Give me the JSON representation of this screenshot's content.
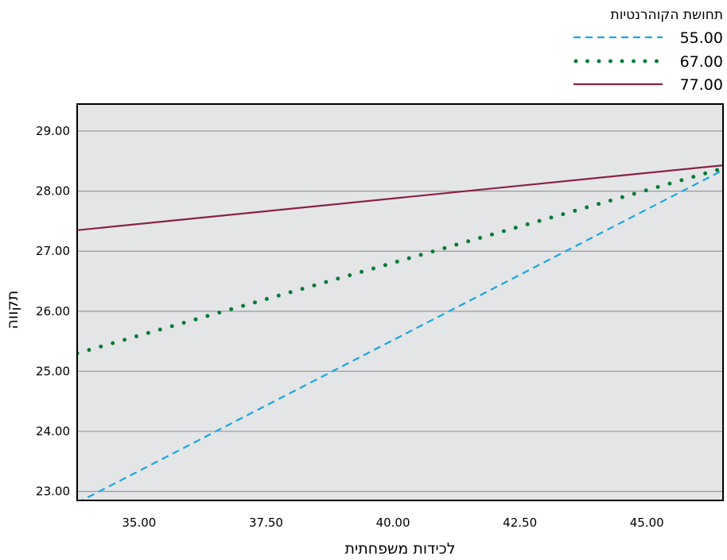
{
  "chart_data": {
    "type": "line",
    "title": "",
    "xlabel": "לכידות משפחתית",
    "ylabel": "תקווה",
    "xlim": [
      33.78,
      46.5
    ],
    "ylim": [
      22.85,
      29.45
    ],
    "x_ticks": [
      "35.00",
      "37.50",
      "40.00",
      "42.50",
      "45.00"
    ],
    "y_ticks": [
      "23.00",
      "24.00",
      "25.00",
      "26.00",
      "27.00",
      "28.00",
      "29.00"
    ],
    "grid": "horizontal",
    "legend": {
      "title": "תחושת הקוהרנטיות",
      "placement": "top-right"
    },
    "series": [
      {
        "name": "55.00",
        "style": "dashed",
        "color": "#1aa7e0",
        "points": [
          [
            33.78,
            22.81
          ],
          [
            46.5,
            28.35
          ]
        ]
      },
      {
        "name": "67.00",
        "style": "dotted",
        "color": "#0a7a3a",
        "points": [
          [
            33.78,
            25.3
          ],
          [
            46.5,
            28.38
          ]
        ]
      },
      {
        "name": "77.00",
        "style": "solid",
        "color": "#8a2246",
        "points": [
          [
            33.78,
            27.35
          ],
          [
            46.5,
            28.43
          ]
        ]
      }
    ]
  },
  "colors": {
    "plot_background": "#e4e5e7",
    "grid": "#9a9a9a",
    "frame": "#000000"
  }
}
